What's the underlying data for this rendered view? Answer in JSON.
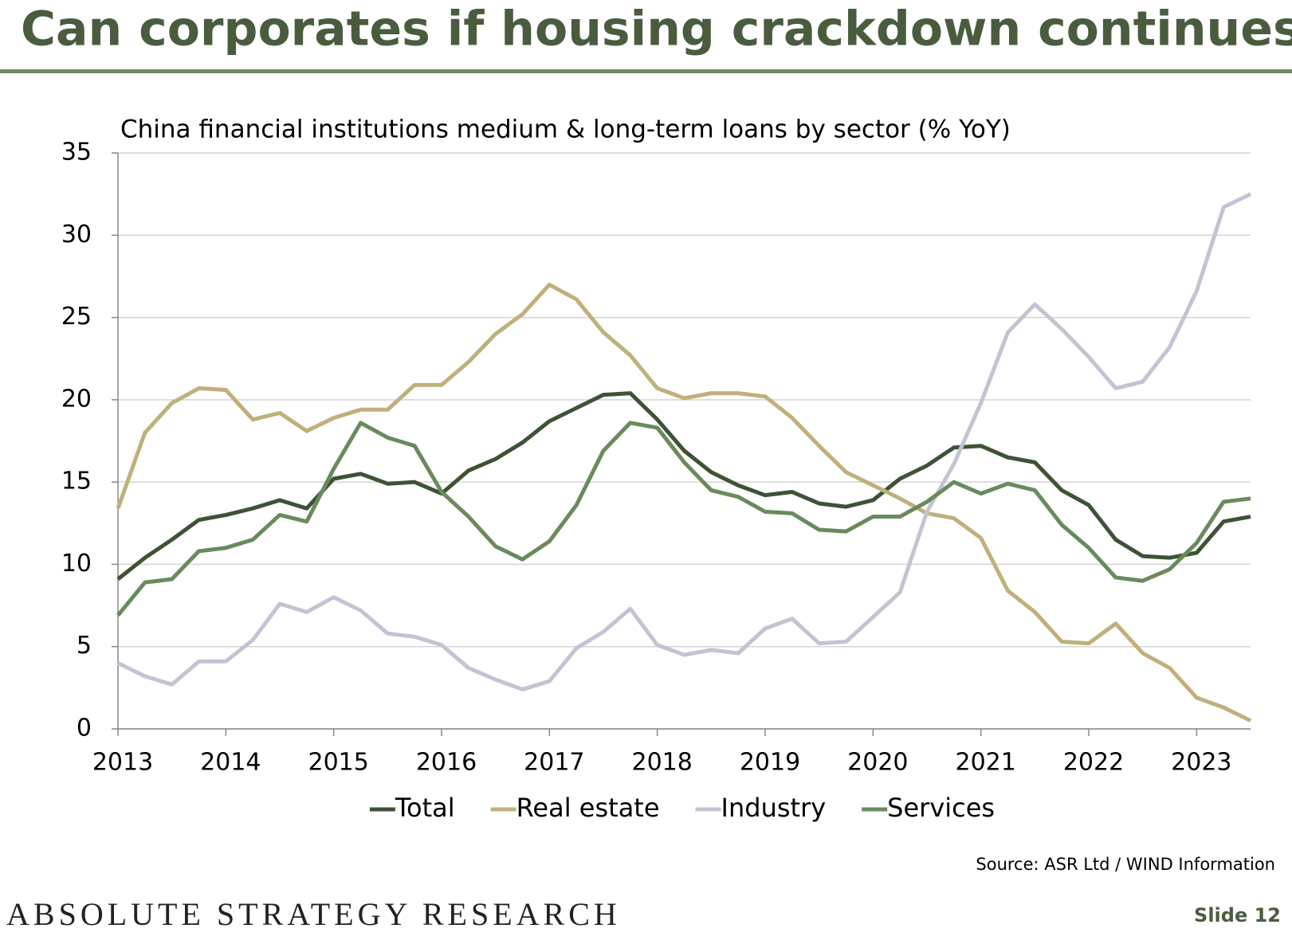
{
  "slide": {
    "title": "Can corporates if housing crackdown continues?",
    "brand": "ABSOLUTE STRATEGY RESEARCH",
    "slide_number": "Slide 12"
  },
  "chart_data": {
    "type": "line",
    "title": "China financial institutions medium & long-term loans by sector (% YoY)",
    "source": "Source: ASR Ltd / WIND Information",
    "x": [
      2013,
      2013.25,
      2013.5,
      2013.75,
      2014,
      2014.25,
      2014.5,
      2014.75,
      2015,
      2015.25,
      2015.5,
      2015.75,
      2016,
      2016.25,
      2016.5,
      2016.75,
      2017,
      2017.25,
      2017.5,
      2017.75,
      2018,
      2018.25,
      2018.5,
      2018.75,
      2019,
      2019.25,
      2019.5,
      2019.75,
      2020,
      2020.25,
      2020.5,
      2020.75,
      2021,
      2021.25,
      2021.5,
      2021.75,
      2022,
      2022.25,
      2022.5,
      2022.75,
      2023,
      2023.25,
      2023.5
    ],
    "series": [
      {
        "name": "Total",
        "color": "#3e5236",
        "values": [
          9.1,
          10.4,
          11.5,
          12.7,
          13.0,
          13.4,
          13.9,
          13.4,
          15.2,
          15.5,
          14.9,
          15.0,
          14.3,
          15.7,
          16.4,
          17.4,
          18.7,
          19.5,
          20.3,
          20.4,
          18.8,
          16.9,
          15.6,
          14.8,
          14.2,
          14.4,
          13.7,
          13.5,
          13.9,
          15.2,
          16.0,
          17.1,
          17.2,
          16.5,
          16.2,
          14.5,
          13.6,
          11.5,
          10.5,
          10.4,
          10.7,
          12.6,
          12.9
        ]
      },
      {
        "name": "Real estate",
        "color": "#bfb07c",
        "values": [
          13.4,
          18.0,
          19.8,
          20.7,
          20.6,
          18.8,
          19.2,
          18.1,
          18.9,
          19.4,
          19.4,
          20.9,
          20.9,
          22.3,
          24.0,
          25.2,
          27.0,
          26.1,
          24.1,
          22.7,
          20.7,
          20.1,
          20.4,
          20.4,
          20.2,
          18.9,
          17.2,
          15.6,
          14.8,
          14.0,
          13.1,
          12.8,
          11.6,
          8.4,
          7.1,
          5.3,
          5.2,
          6.4,
          4.6,
          3.7,
          1.9,
          1.3,
          0.5
        ]
      },
      {
        "name": "Industry",
        "color": "#c4c3d4",
        "values": [
          4.0,
          3.2,
          2.7,
          4.1,
          4.1,
          5.4,
          7.6,
          7.1,
          8.0,
          7.2,
          5.8,
          5.6,
          5.1,
          3.7,
          3.0,
          2.4,
          2.9,
          4.9,
          5.9,
          7.3,
          5.1,
          4.5,
          4.8,
          4.6,
          6.1,
          6.7,
          5.2,
          5.3,
          6.8,
          8.3,
          13.2,
          16.1,
          19.8,
          24.1,
          25.8,
          24.3,
          22.6,
          20.7,
          21.1,
          23.2,
          26.6,
          31.7,
          32.5
        ]
      },
      {
        "name": "Services",
        "color": "#6a8a5c",
        "values": [
          6.9,
          8.9,
          9.1,
          10.8,
          11.0,
          11.5,
          13.0,
          12.6,
          15.8,
          18.6,
          17.7,
          17.2,
          14.4,
          12.9,
          11.1,
          10.3,
          11.4,
          13.6,
          16.9,
          18.6,
          18.3,
          16.2,
          14.5,
          14.1,
          13.2,
          13.1,
          12.1,
          12.0,
          12.9,
          12.9,
          13.8,
          15.0,
          14.3,
          14.9,
          14.5,
          12.4,
          11.0,
          9.2,
          9.0,
          9.7,
          11.3,
          13.8,
          14.0
        ]
      }
    ],
    "xlim": [
      2013,
      2023.5
    ],
    "xticks": [
      2013,
      2014,
      2015,
      2016,
      2017,
      2018,
      2019,
      2020,
      2021,
      2022,
      2023
    ],
    "ylim": [
      0,
      35
    ],
    "yticks": [
      0,
      5,
      10,
      15,
      20,
      25,
      30,
      35
    ],
    "grid": true,
    "legend": "bottom"
  }
}
